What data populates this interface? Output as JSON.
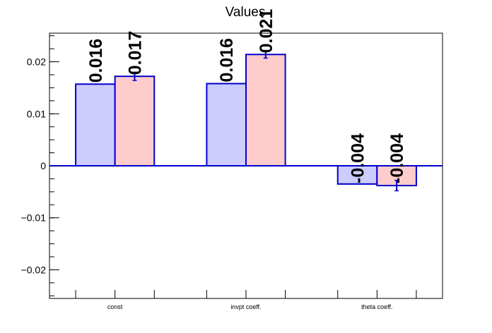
{
  "chart_data": {
    "type": "bar",
    "title": "Values",
    "xlabel": "",
    "ylabel": "",
    "categories": [
      "const",
      "invpt coeff.",
      "theta coeff."
    ],
    "ylim": [
      -0.0255,
      0.0255
    ],
    "y_ticks": [
      -0.02,
      -0.01,
      0,
      0.01,
      0.02
    ],
    "y_tick_labels": [
      "−0.02",
      "−0.01",
      "0",
      "0.01",
      "0.02"
    ],
    "grid": false,
    "legend": "none",
    "series": [
      {
        "values": [
          0.0157,
          0.0158,
          -0.0035
        ],
        "labels": [
          "0.016",
          "0.016",
          "-0.004"
        ],
        "errors": [
          0,
          0,
          0
        ],
        "fill": "#ccccff",
        "stroke": "#0000cc"
      },
      {
        "values": [
          0.0172,
          0.0214,
          -0.0038
        ],
        "labels": [
          "0.017",
          "0.021",
          "-0.004"
        ],
        "errors": [
          0.0008,
          0.0007,
          0.001
        ],
        "fill": "#ffcccc",
        "stroke": "#0000cc"
      }
    ]
  }
}
